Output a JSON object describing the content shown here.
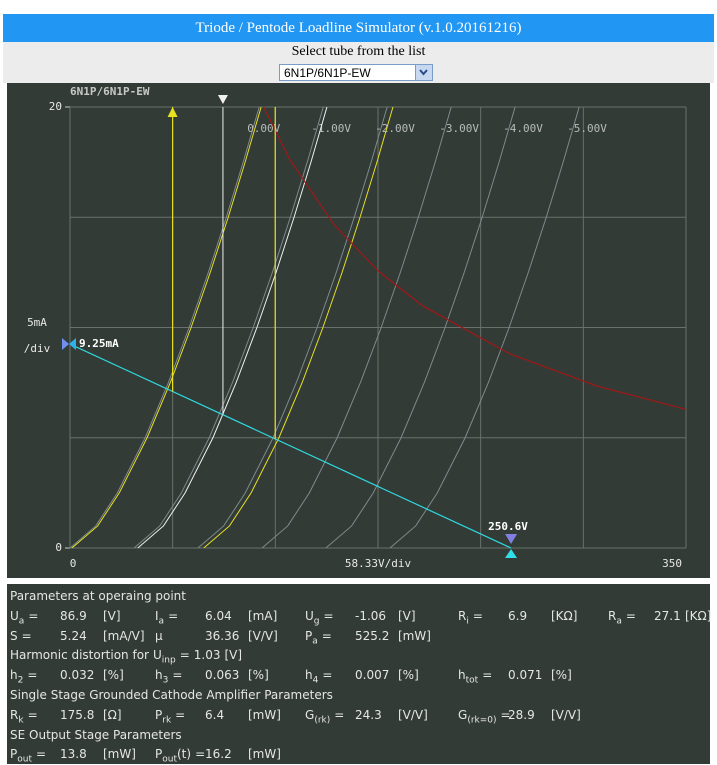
{
  "header": {
    "title": "Triode / Pentode Loadline Simulator (v.1.0.20161216)"
  },
  "selector": {
    "label": "Select tube from the list",
    "value": "6N1P/6N1P-EW"
  },
  "chart_data": {
    "type": "line",
    "title": "6N1P/6N1P-EW",
    "xlabel": "58.33V/div",
    "ylabel": [
      "5mA",
      "/div"
    ],
    "xlim": [
      0,
      350
    ],
    "ylim": [
      0,
      20
    ],
    "xticks": [
      0,
      350
    ],
    "yticks": [
      0,
      20
    ],
    "xgrid": [
      58.33,
      116.67,
      175,
      233.33,
      291.67
    ],
    "ygrid": [
      5,
      10,
      15
    ],
    "current": [
      0,
      1,
      2.5,
      5,
      7.5,
      10,
      12.5,
      15,
      17.5,
      20
    ],
    "series": [
      {
        "name": "0.00V",
        "color": "#7f8a8f",
        "x": [
          0,
          14.6,
          26.9,
          42.7,
          55.9,
          67.7,
          78.6,
          88.8,
          98.4,
          107.5
        ]
      },
      {
        "name": "-1.00V",
        "color": "#7f8a8f",
        "x": [
          36.4,
          51.0,
          63.3,
          79.1,
          92.3,
          104.1,
          115.0,
          125.2,
          134.8,
          143.9
        ]
      },
      {
        "name": "-2.00V",
        "color": "#7f8a8f",
        "x": [
          72.7,
          87.3,
          99.6,
          115.4,
          128.6,
          140.4,
          151.3,
          161.5,
          171.1,
          180.2
        ]
      },
      {
        "name": "-3.00V",
        "color": "#7f8a8f",
        "x": [
          109.1,
          123.7,
          136.0,
          151.8,
          165.0,
          176.8,
          187.7,
          197.9,
          207.5,
          216.6
        ]
      },
      {
        "name": "-4.00V",
        "color": "#7f8a8f",
        "x": [
          145.4,
          160.0,
          172.3,
          188.1,
          201.3,
          213.1,
          224.0,
          234.2,
          243.8,
          252.9
        ]
      },
      {
        "name": "-5.00V",
        "color": "#7f8a8f",
        "x": [
          181.8,
          196.4,
          208.7,
          224.5,
          237.7,
          249.5,
          260.4,
          270.6,
          280.2,
          289.3
        ]
      },
      {
        "color": "#e8e020",
        "x": [
          1.1,
          15.7,
          28.0,
          43.8,
          57.0,
          68.8,
          79.7,
          89.9,
          99.5,
          108.6
        ]
      },
      {
        "color": "#f0f0f0",
        "x": [
          38.5,
          53.1,
          65.4,
          81.2,
          94.4,
          106.2,
          117.1,
          127.3,
          136.9,
          146.0
        ]
      },
      {
        "color": "#e8e020",
        "x": [
          76.0,
          90.6,
          102.9,
          118.7,
          131.9,
          143.7,
          154.6,
          164.8,
          174.4,
          183.5
        ]
      }
    ],
    "dissipation": {
      "color": "#a01818",
      "x": [
        110,
        125,
        150,
        175,
        200,
        250,
        300,
        350
      ],
      "values": [
        20,
        17.6,
        14.67,
        12.57,
        11,
        8.8,
        7.33,
        6.29
      ]
    },
    "load_line": {
      "color": "#30d8e0",
      "current": 9.25,
      "voltage": 250.6,
      "value_labels": [
        "9.25mA",
        "250.6V"
      ]
    },
    "operating_point": {
      "color": "#f0f0f0",
      "voltage": 86.9
    },
    "swing": {
      "color": "#e8e020",
      "voltages": [
        58.3,
        116.6
      ]
    }
  },
  "sections": [
    {
      "heading": "Parameters at operaing point",
      "rows": [
        [
          {
            "symbol": "U",
            "sub": "a",
            "eq": "=",
            "value": 86.9,
            "unit": "[V]"
          },
          {
            "symbol": "I",
            "sub": "a",
            "eq": "=",
            "value": 6.04,
            "unit": "[mA]"
          },
          {
            "symbol": "U",
            "sub": "g",
            "eq": "=",
            "value": -1.06,
            "unit": "[V]"
          },
          {
            "symbol": "R",
            "sub": "i",
            "eq": "=",
            "value": 6.9,
            "unit": "[KΩ]"
          },
          {
            "symbol": "R",
            "sub": "a",
            "eq": "=",
            "value": 27.1,
            "unit": "[KΩ]"
          }
        ],
        [
          {
            "symbol": "S",
            "eq": "=",
            "value": 5.24,
            "unit": "[mA/V]"
          },
          {
            "symbol": "μ",
            "value": 36.36,
            "unit": "[V/V]"
          },
          {
            "symbol": "P",
            "sub": "a",
            "eq": "=",
            "value": 525.2,
            "unit": "[mW]"
          }
        ]
      ]
    },
    {
      "heading": {
        "text": "Harmonic distortion for",
        "symbol": "U",
        "sub": "inp",
        "eq": "=",
        "value": 1.03,
        "unit": "[V]"
      },
      "rows": [
        [
          {
            "symbol": "h",
            "sub": "2",
            "eq": "=",
            "value": 0.032,
            "unit": "[%]"
          },
          {
            "symbol": "h",
            "sub": "3",
            "eq": "=",
            "value": 0.063,
            "unit": "[%]"
          },
          {
            "symbol": "h",
            "sub": "4",
            "eq": "=",
            "value": 0.007,
            "unit": "[%]"
          },
          {
            "symbol": "h",
            "sub": "tot",
            "eq": "=",
            "value": 0.071,
            "unit": "[%]"
          }
        ]
      ]
    },
    {
      "heading": "Single Stage Grounded Cathode Amplifier Parameters",
      "rows": [
        [
          {
            "symbol": "R",
            "sub": "k",
            "eq": "=",
            "value": 175.8,
            "unit": "[Ω]"
          },
          {
            "symbol": "P",
            "sub": "rk",
            "eq": "=",
            "value": 6.4,
            "unit": "[mW]"
          },
          {
            "symbol": "G",
            "sub": "(rk)",
            "eq": "=",
            "value": 24.3,
            "unit": "[V/V]"
          },
          {
            "symbol": "G",
            "sub": "(rk=0)",
            "eq": "=",
            "value": 28.9,
            "unit": "[V/V]"
          }
        ]
      ]
    },
    {
      "heading": "SE Output Stage Parameters",
      "rows": [
        [
          {
            "symbol": "P",
            "sub": "out",
            "eq": "=",
            "value": 13.8,
            "unit": "[mW]"
          },
          {
            "symbol": "P",
            "sub": "out",
            "suffix": "(t)",
            "eq": "=",
            "value": 16.2,
            "unit": "[mW]"
          }
        ]
      ]
    }
  ]
}
